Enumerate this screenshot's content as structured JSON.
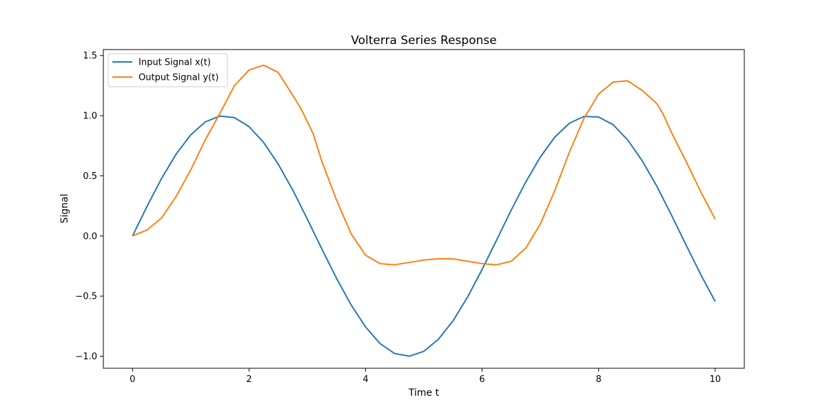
{
  "chart_data": {
    "type": "line",
    "title": "Volterra Series Response",
    "xlabel": "Time t",
    "ylabel": "Signal",
    "xlim": [
      -0.5,
      10.5
    ],
    "ylim": [
      -1.1,
      1.55
    ],
    "xticks": [
      0,
      2,
      4,
      6,
      8,
      10
    ],
    "xtick_labels": [
      "0",
      "2",
      "4",
      "6",
      "8",
      "10"
    ],
    "yticks": [
      -1.0,
      -0.5,
      0.0,
      0.5,
      1.0,
      1.5
    ],
    "ytick_labels": [
      "−1.0",
      "−0.5",
      "0.0",
      "0.5",
      "1.0",
      "1.5"
    ],
    "grid": false,
    "legend_position": "top-left",
    "series": [
      {
        "name": "Input Signal x(t)",
        "color": "#1f77b4",
        "x": [
          0,
          0.25,
          0.5,
          0.75,
          1,
          1.25,
          1.5,
          1.75,
          2,
          2.25,
          2.5,
          2.75,
          3,
          3.25,
          3.5,
          3.75,
          4,
          4.25,
          4.5,
          4.75,
          5,
          5.25,
          5.5,
          5.75,
          6,
          6.25,
          6.5,
          6.75,
          7,
          7.25,
          7.5,
          7.75,
          8,
          8.25,
          8.5,
          8.75,
          9,
          9.25,
          9.5,
          9.75,
          10
        ],
        "y": [
          0.0,
          0.247,
          0.479,
          0.682,
          0.841,
          0.949,
          0.997,
          0.984,
          0.909,
          0.778,
          0.598,
          0.382,
          0.141,
          -0.108,
          -0.351,
          -0.572,
          -0.757,
          -0.895,
          -0.978,
          -0.999,
          -0.959,
          -0.859,
          -0.706,
          -0.508,
          -0.279,
          -0.033,
          0.215,
          0.45,
          0.657,
          0.823,
          0.938,
          0.994,
          0.989,
          0.925,
          0.798,
          0.624,
          0.412,
          0.174,
          -0.075,
          -0.319,
          -0.544
        ]
      },
      {
        "name": "Output Signal y(t)",
        "color": "#ff7f0e",
        "x": [
          0,
          0.25,
          0.5,
          0.75,
          1,
          1.25,
          1.5,
          1.75,
          2,
          2.25,
          2.5,
          2.75,
          2.9,
          3.1,
          3.25,
          3.5,
          3.75,
          4,
          4.25,
          4.5,
          4.75,
          5,
          5.25,
          5.5,
          5.75,
          6,
          6.25,
          6.5,
          6.75,
          7,
          7.25,
          7.5,
          7.75,
          8,
          8.25,
          8.5,
          8.75,
          9,
          9.1,
          9.25,
          9.5,
          9.75,
          10
        ],
        "y": [
          0.0,
          0.05,
          0.15,
          0.33,
          0.55,
          0.8,
          1.02,
          1.25,
          1.38,
          1.42,
          1.36,
          1.17,
          1.05,
          0.85,
          0.62,
          0.3,
          0.02,
          -0.16,
          -0.23,
          -0.24,
          -0.22,
          -0.2,
          -0.19,
          -0.19,
          -0.21,
          -0.23,
          -0.24,
          -0.21,
          -0.1,
          0.1,
          0.38,
          0.7,
          0.98,
          1.18,
          1.28,
          1.29,
          1.21,
          1.1,
          1.02,
          0.86,
          0.62,
          0.37,
          0.14
        ]
      }
    ]
  }
}
